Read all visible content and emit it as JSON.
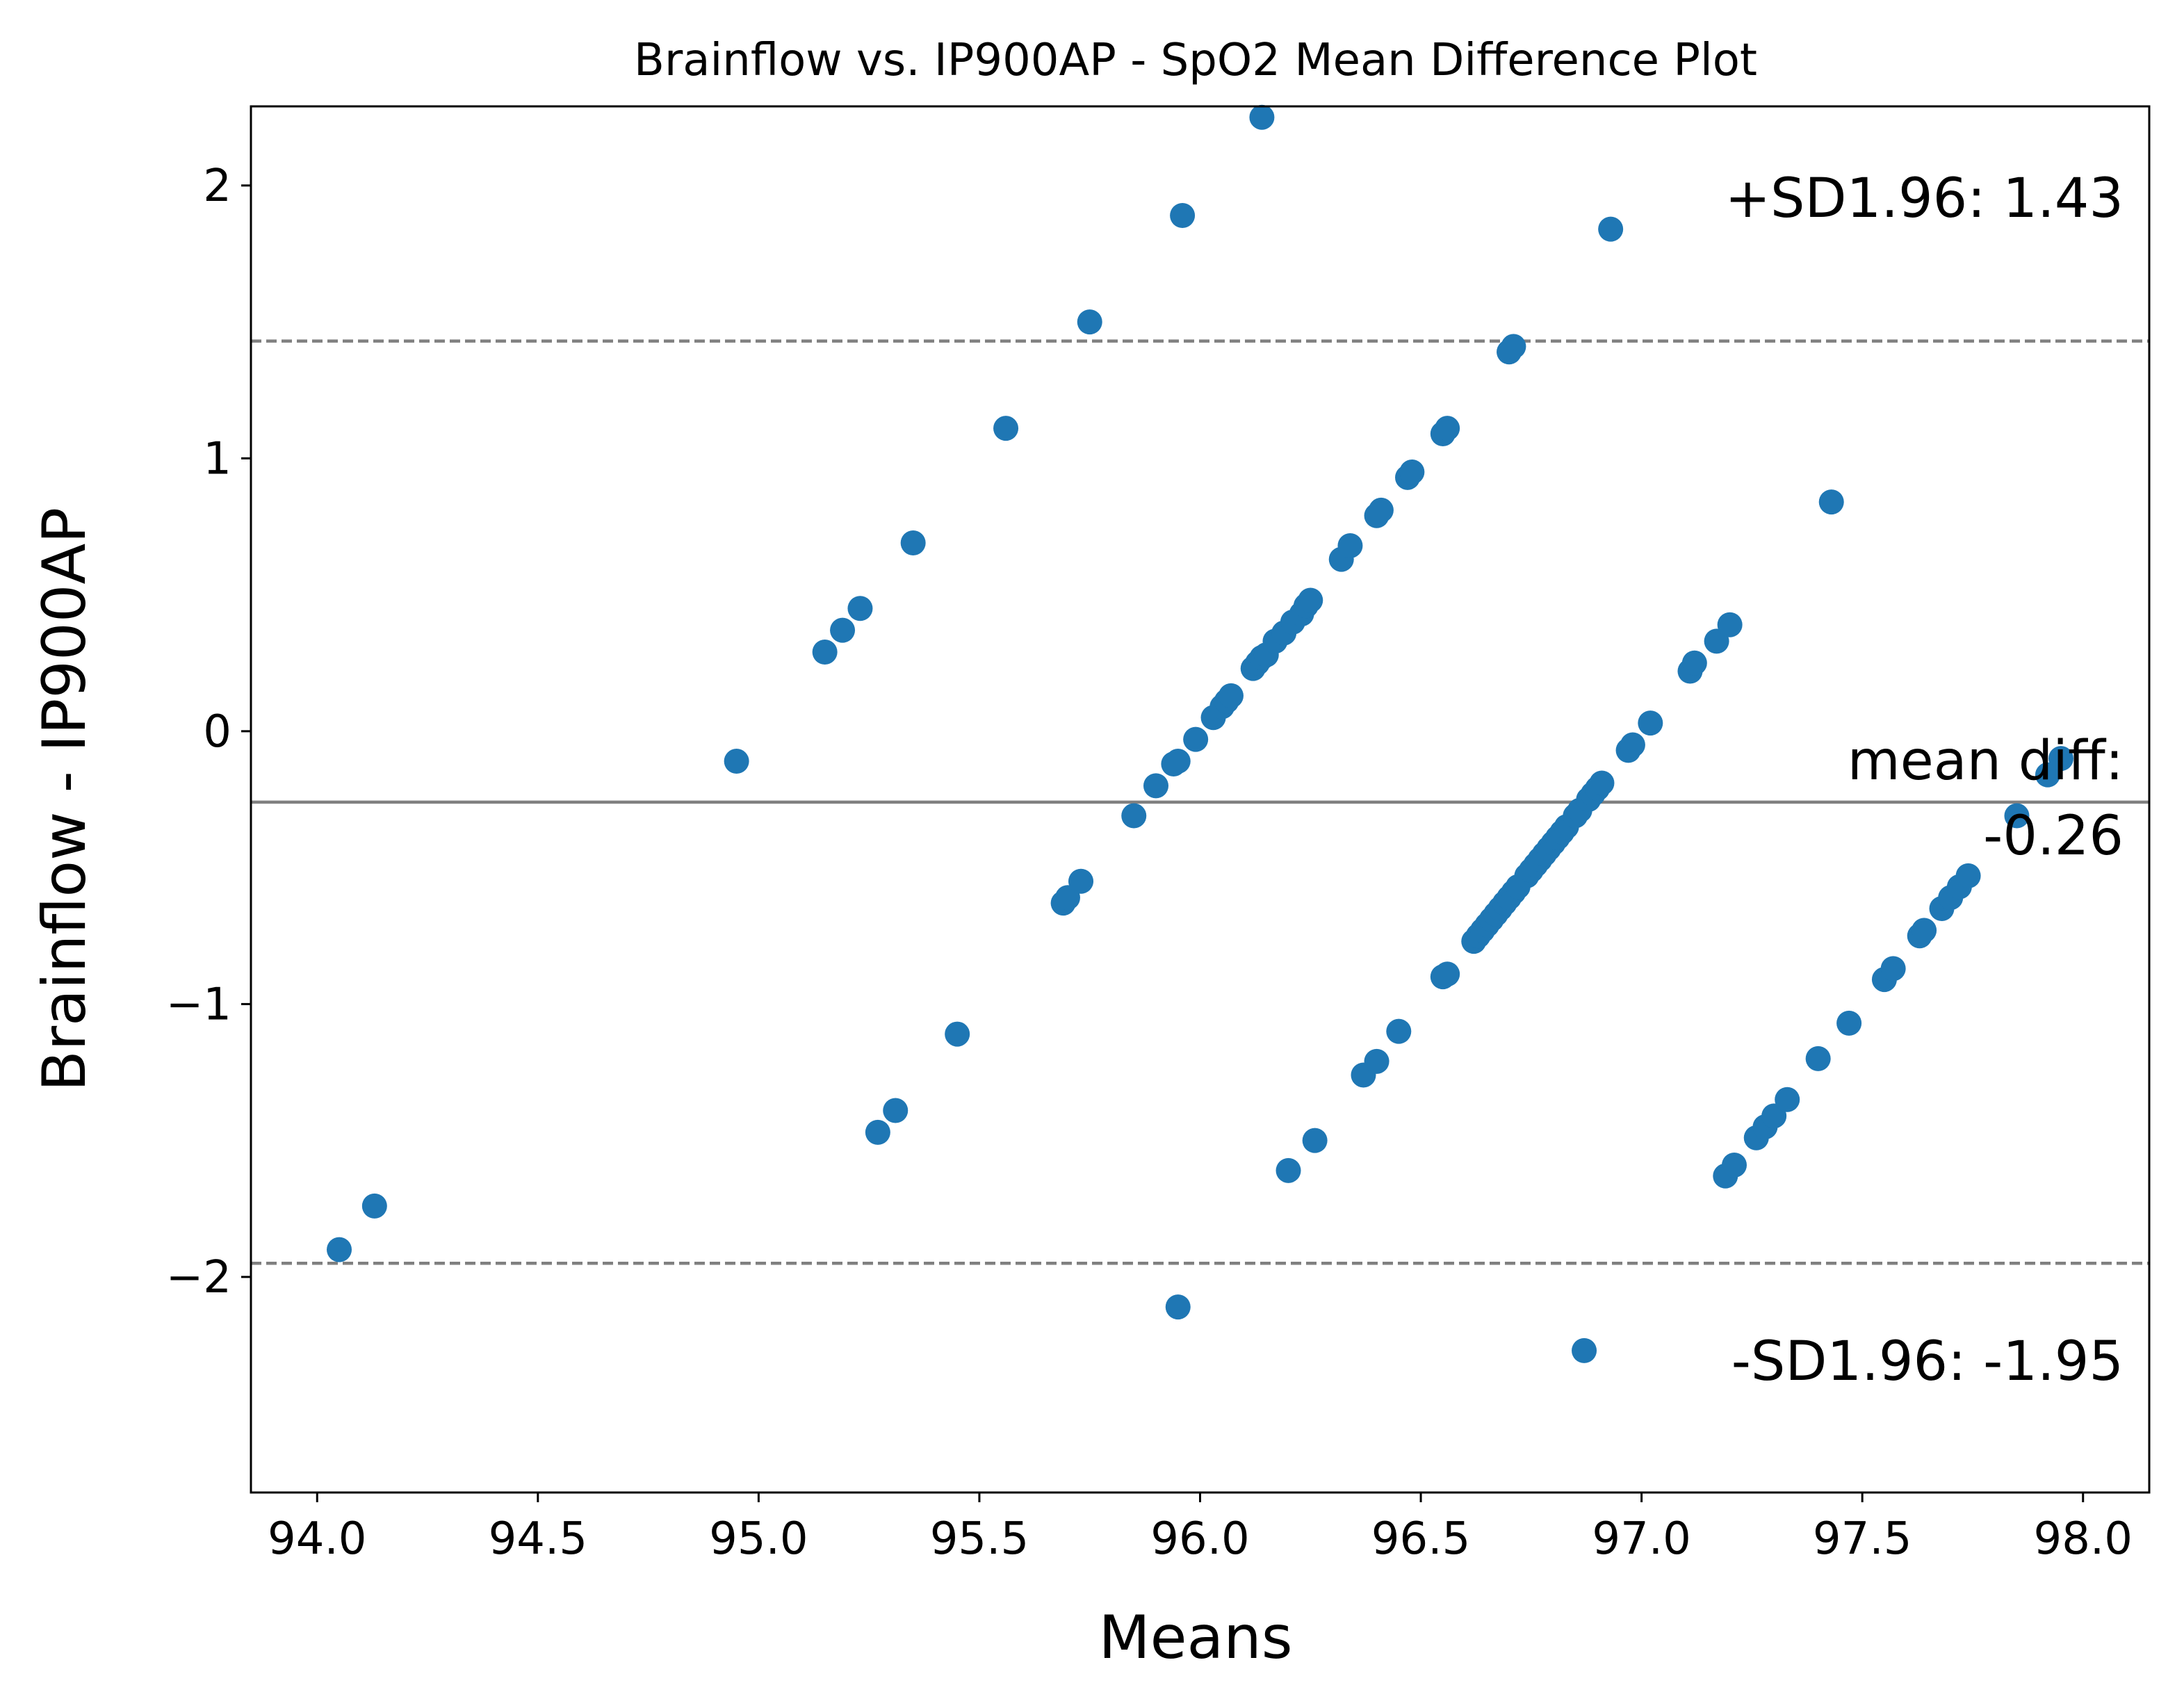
{
  "chart_data": {
    "type": "scatter",
    "title": "Brainflow vs. IP900AP - SpO2 Mean Difference Plot",
    "xlabel": "Means",
    "ylabel": "Brainflow - IP900AP",
    "xlim": [
      93.85,
      98.15
    ],
    "ylim": [
      -2.79,
      2.29
    ],
    "xticks": [
      {
        "value": 94.0,
        "label": "94.0"
      },
      {
        "value": 94.5,
        "label": "94.5"
      },
      {
        "value": 95.0,
        "label": "95.0"
      },
      {
        "value": 95.5,
        "label": "95.5"
      },
      {
        "value": 96.0,
        "label": "96.0"
      },
      {
        "value": 96.5,
        "label": "96.5"
      },
      {
        "value": 97.0,
        "label": "97.0"
      },
      {
        "value": 97.5,
        "label": "97.5"
      },
      {
        "value": 98.0,
        "label": "98.0"
      }
    ],
    "yticks": [
      {
        "value": 2,
        "label": "2"
      },
      {
        "value": 1,
        "label": "1"
      },
      {
        "value": 0,
        "label": "0"
      },
      {
        "value": -1,
        "label": "−1"
      },
      {
        "value": -2,
        "label": "−2"
      }
    ],
    "grid": false,
    "marker_color": "#1f77b4",
    "reference_line_color": "#808080",
    "reference_lines": [
      {
        "name": "mean",
        "value": -0.26,
        "style": "solid"
      },
      {
        "name": "upper",
        "value": 1.43,
        "style": "dashed"
      },
      {
        "name": "lower",
        "value": -1.95,
        "style": "dashed"
      }
    ],
    "annotations": {
      "upper": "+SD1.96: 1.43",
      "mean_line1": "mean diff:",
      "mean_line2": "-0.26",
      "lower": "-SD1.96: -1.95"
    },
    "points": [
      {
        "x": 94.05,
        "y": -1.9
      },
      {
        "x": 94.13,
        "y": -1.74
      },
      {
        "x": 94.95,
        "y": -0.11
      },
      {
        "x": 95.15,
        "y": 0.29
      },
      {
        "x": 95.19,
        "y": 0.37
      },
      {
        "x": 95.23,
        "y": 0.45
      },
      {
        "x": 95.27,
        "y": -1.47
      },
      {
        "x": 95.31,
        "y": -1.39
      },
      {
        "x": 95.35,
        "y": 0.69
      },
      {
        "x": 95.45,
        "y": -1.11
      },
      {
        "x": 95.56,
        "y": 1.11
      },
      {
        "x": 95.69,
        "y": -0.63
      },
      {
        "x": 95.7,
        "y": -0.61
      },
      {
        "x": 95.73,
        "y": -0.55
      },
      {
        "x": 95.75,
        "y": 1.5
      },
      {
        "x": 95.85,
        "y": -0.31
      },
      {
        "x": 95.9,
        "y": -0.2
      },
      {
        "x": 95.94,
        "y": -0.12
      },
      {
        "x": 95.95,
        "y": -2.11
      },
      {
        "x": 95.95,
        "y": -0.11
      },
      {
        "x": 95.96,
        "y": 1.89
      },
      {
        "x": 95.99,
        "y": -0.03
      },
      {
        "x": 96.03,
        "y": 0.05
      },
      {
        "x": 96.05,
        "y": 0.09
      },
      {
        "x": 96.06,
        "y": 0.11
      },
      {
        "x": 96.07,
        "y": 0.13
      },
      {
        "x": 96.12,
        "y": 0.23
      },
      {
        "x": 96.13,
        "y": 0.25
      },
      {
        "x": 96.14,
        "y": 2.25
      },
      {
        "x": 96.14,
        "y": 0.27
      },
      {
        "x": 96.15,
        "y": 0.28
      },
      {
        "x": 96.17,
        "y": 0.33
      },
      {
        "x": 96.19,
        "y": 0.36
      },
      {
        "x": 96.2,
        "y": -1.61
      },
      {
        "x": 96.21,
        "y": 0.4
      },
      {
        "x": 96.23,
        "y": 0.43
      },
      {
        "x": 96.24,
        "y": 0.46
      },
      {
        "x": 96.25,
        "y": 0.48
      },
      {
        "x": 96.26,
        "y": -1.5
      },
      {
        "x": 96.32,
        "y": 0.63
      },
      {
        "x": 96.34,
        "y": 0.68
      },
      {
        "x": 96.37,
        "y": -1.26
      },
      {
        "x": 96.4,
        "y": 0.79
      },
      {
        "x": 96.4,
        "y": -1.21
      },
      {
        "x": 96.41,
        "y": 0.81
      },
      {
        "x": 96.45,
        "y": -1.1
      },
      {
        "x": 96.47,
        "y": 0.93
      },
      {
        "x": 96.48,
        "y": 0.95
      },
      {
        "x": 96.55,
        "y": 1.09
      },
      {
        "x": 96.55,
        "y": -0.9
      },
      {
        "x": 96.56,
        "y": 1.11
      },
      {
        "x": 96.56,
        "y": -0.89
      },
      {
        "x": 96.62,
        "y": -0.77
      },
      {
        "x": 96.63,
        "y": -0.75
      },
      {
        "x": 96.64,
        "y": -0.73
      },
      {
        "x": 96.65,
        "y": -0.71
      },
      {
        "x": 96.66,
        "y": -0.69
      },
      {
        "x": 96.67,
        "y": -0.67
      },
      {
        "x": 96.68,
        "y": -0.65
      },
      {
        "x": 96.69,
        "y": -0.63
      },
      {
        "x": 96.7,
        "y": -0.61
      },
      {
        "x": 96.7,
        "y": 1.39
      },
      {
        "x": 96.71,
        "y": -0.59
      },
      {
        "x": 96.71,
        "y": 1.41
      },
      {
        "x": 96.72,
        "y": -0.57
      },
      {
        "x": 96.74,
        "y": -0.53
      },
      {
        "x": 96.75,
        "y": -0.51
      },
      {
        "x": 96.76,
        "y": -0.49
      },
      {
        "x": 96.77,
        "y": -0.47
      },
      {
        "x": 96.78,
        "y": -0.45
      },
      {
        "x": 96.79,
        "y": -0.43
      },
      {
        "x": 96.8,
        "y": -0.41
      },
      {
        "x": 96.81,
        "y": -0.39
      },
      {
        "x": 96.82,
        "y": -0.37
      },
      {
        "x": 96.83,
        "y": -0.35
      },
      {
        "x": 96.85,
        "y": -0.31
      },
      {
        "x": 96.86,
        "y": -0.29
      },
      {
        "x": 96.87,
        "y": -2.27
      },
      {
        "x": 96.88,
        "y": -0.25
      },
      {
        "x": 96.89,
        "y": -0.23
      },
      {
        "x": 96.9,
        "y": -0.21
      },
      {
        "x": 96.91,
        "y": -0.19
      },
      {
        "x": 96.93,
        "y": 1.84
      },
      {
        "x": 96.97,
        "y": -0.07
      },
      {
        "x": 96.98,
        "y": -0.05
      },
      {
        "x": 97.02,
        "y": 0.03
      },
      {
        "x": 97.11,
        "y": 0.22
      },
      {
        "x": 97.12,
        "y": 0.25
      },
      {
        "x": 97.17,
        "y": 0.33
      },
      {
        "x": 97.19,
        "y": -1.63
      },
      {
        "x": 97.2,
        "y": 0.39
      },
      {
        "x": 97.21,
        "y": -1.59
      },
      {
        "x": 97.26,
        "y": -1.49
      },
      {
        "x": 97.28,
        "y": -1.45
      },
      {
        "x": 97.3,
        "y": -1.41
      },
      {
        "x": 97.33,
        "y": -1.35
      },
      {
        "x": 97.4,
        "y": -1.2
      },
      {
        "x": 97.43,
        "y": 0.84
      },
      {
        "x": 97.47,
        "y": -1.07
      },
      {
        "x": 97.55,
        "y": -0.91
      },
      {
        "x": 97.57,
        "y": -0.87
      },
      {
        "x": 97.63,
        "y": -0.75
      },
      {
        "x": 97.64,
        "y": -0.73
      },
      {
        "x": 97.68,
        "y": -0.65
      },
      {
        "x": 97.7,
        "y": -0.61
      },
      {
        "x": 97.72,
        "y": -0.57
      },
      {
        "x": 97.74,
        "y": -0.53
      },
      {
        "x": 97.85,
        "y": -0.31
      },
      {
        "x": 97.92,
        "y": -0.16
      },
      {
        "x": 97.95,
        "y": -0.1
      }
    ]
  }
}
